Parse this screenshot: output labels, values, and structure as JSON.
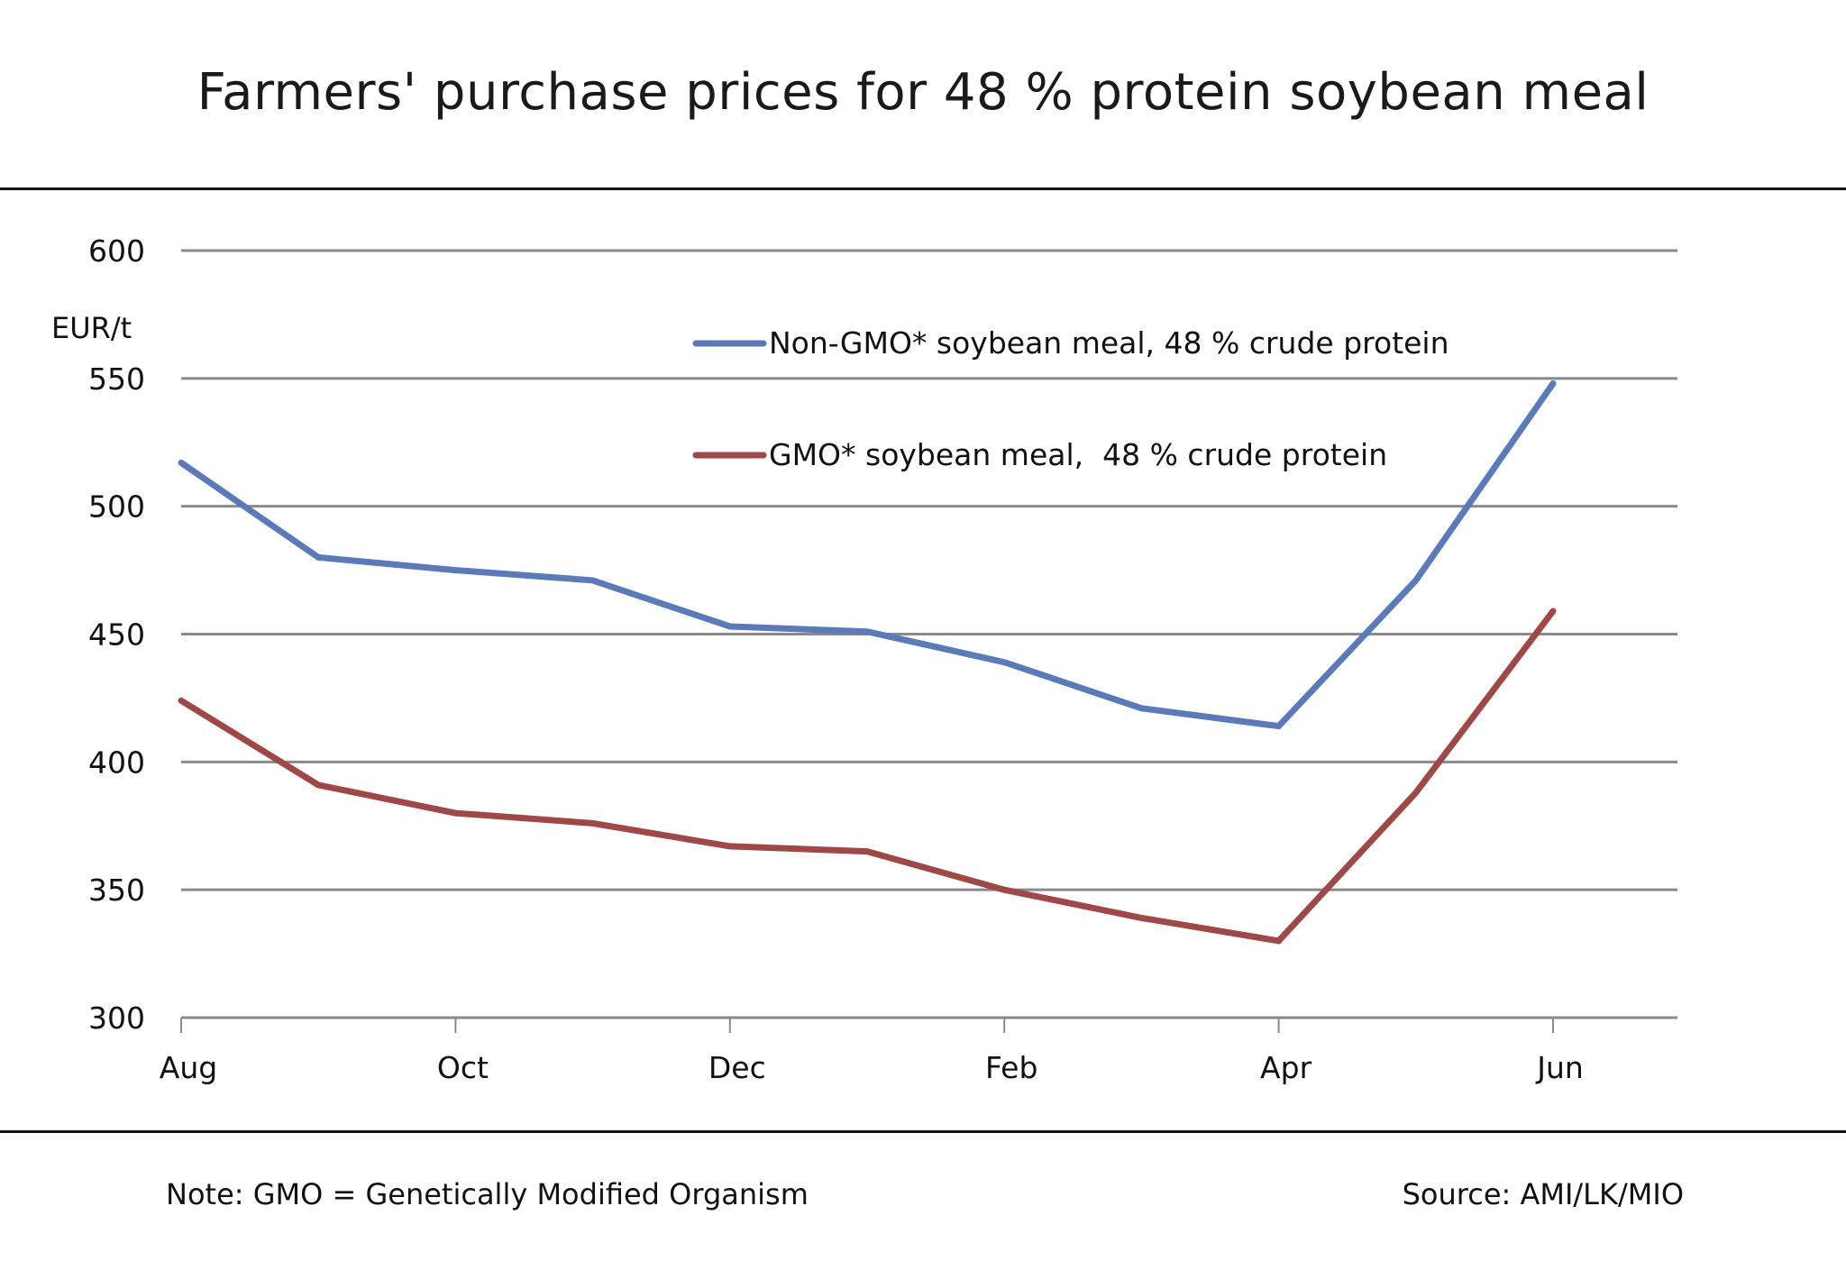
{
  "title": "Farmers' purchase prices for 48 % protein soybean meal",
  "footer": {
    "note": "Note: GMO = Genetically Modified Organism",
    "source": "Source: AMI/LK/MIO"
  },
  "chart_data": {
    "type": "line",
    "title": "Farmers' purchase prices for 48 % protein soybean meal",
    "xlabel": "",
    "ylabel": "EUR/t",
    "ylim": [
      300,
      600
    ],
    "yticks": [
      300,
      350,
      400,
      450,
      500,
      550,
      600
    ],
    "grid": true,
    "legend_position": "top-center",
    "x": [
      "Aug",
      "Sep",
      "Oct",
      "Nov",
      "Dec",
      "Jan",
      "Feb",
      "Mar",
      "Apr",
      "May",
      "Jun"
    ],
    "xtick_labels": [
      "Aug",
      "",
      "Oct",
      "",
      "Dec",
      "",
      "Feb",
      "",
      "Apr",
      "",
      "Jun"
    ],
    "series": [
      {
        "name": "Non-GMO* soybean meal, 48 % crude protein",
        "color": "#5A7AB9",
        "values": [
          517,
          480,
          475,
          471,
          453,
          451,
          439,
          421,
          414,
          471,
          548
        ]
      },
      {
        "name": "GMO* soybean meal,  48 % crude protein",
        "color": "#A04848",
        "values": [
          424,
          391,
          380,
          376,
          367,
          365,
          350,
          339,
          330,
          388,
          459
        ]
      }
    ]
  }
}
